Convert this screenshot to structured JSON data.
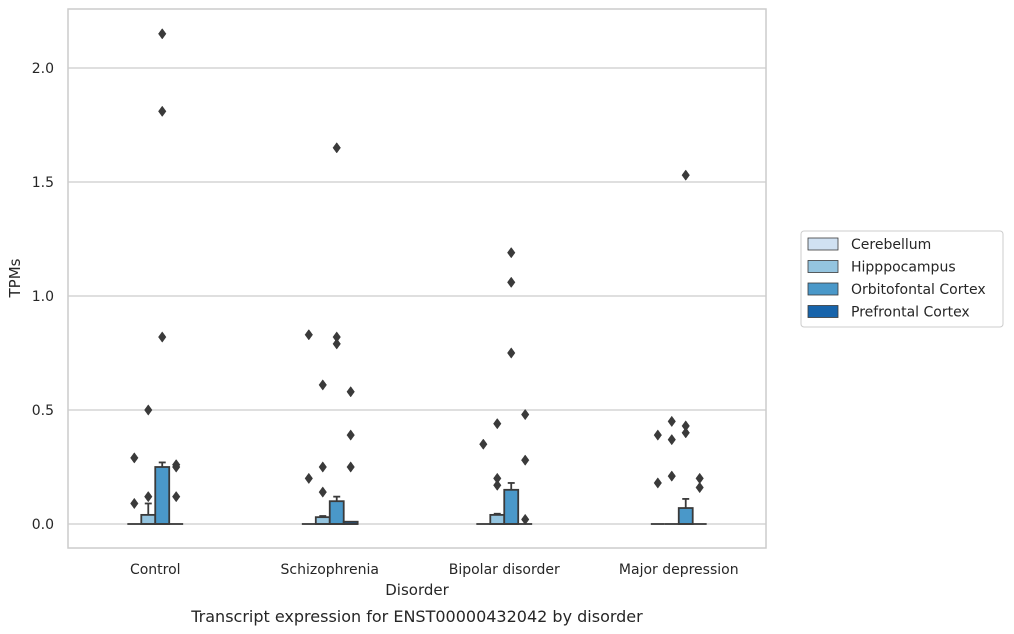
{
  "chart_data": {
    "type": "box",
    "caption": "Transcript expression for ENST00000432042 by disorder",
    "xlabel": "Disorder",
    "ylabel": "TPMs",
    "categories": [
      "Control",
      "Schizophrenia",
      "Bipolar disorder",
      "Major depression"
    ],
    "ylim": [
      -0.1,
      2.26
    ],
    "yticks": [
      0.0,
      0.5,
      1.0,
      1.5,
      2.0
    ],
    "ytick_labels": [
      "0.0",
      "0.5",
      "1.0",
      "1.5",
      "2.0"
    ],
    "grid": "horizontal",
    "legend_position": "right",
    "series": [
      {
        "name": "Cerebellum",
        "color": "#d0e1f2",
        "boxes": [
          {
            "q1": 0,
            "median": 0,
            "q3": 0,
            "whisker_low": 0,
            "whisker_high": 0,
            "outliers": [
              0.29,
              0.09
            ]
          },
          {
            "q1": 0,
            "median": 0,
            "q3": 0,
            "whisker_low": 0,
            "whisker_high": 0,
            "outliers": [
              0.83,
              0.2
            ]
          },
          {
            "q1": 0,
            "median": 0,
            "q3": 0,
            "whisker_low": 0,
            "whisker_high": 0,
            "outliers": [
              0.35
            ]
          },
          {
            "q1": 0,
            "median": 0,
            "q3": 0,
            "whisker_low": 0,
            "whisker_high": 0,
            "outliers": [
              0.39,
              0.18
            ]
          }
        ]
      },
      {
        "name": "Hipppocampus",
        "color": "#94c4df",
        "boxes": [
          {
            "q1": 0,
            "median": 0,
            "q3": 0.04,
            "whisker_low": 0,
            "whisker_high": 0.09,
            "outliers": [
              0.5,
              0.12
            ]
          },
          {
            "q1": 0,
            "median": 0,
            "q3": 0.03,
            "whisker_low": 0,
            "whisker_high": 0.035,
            "outliers": [
              0.61,
              0.25,
              0.14
            ]
          },
          {
            "q1": 0,
            "median": 0,
            "q3": 0.04,
            "whisker_low": 0,
            "whisker_high": 0.045,
            "outliers": [
              0.44,
              0.2,
              0.17
            ]
          },
          {
            "q1": 0,
            "median": 0,
            "q3": 0,
            "whisker_low": 0,
            "whisker_high": 0,
            "outliers": [
              0.45,
              0.37,
              0.21
            ]
          }
        ]
      },
      {
        "name": "Orbitofontal Cortex",
        "color": "#4a98c9",
        "boxes": [
          {
            "q1": 0,
            "median": 0,
            "q3": 0.25,
            "whisker_low": 0,
            "whisker_high": 0.27,
            "outliers": [
              2.15,
              1.81,
              0.82
            ]
          },
          {
            "q1": 0,
            "median": 0,
            "q3": 0.1,
            "whisker_low": 0,
            "whisker_high": 0.12,
            "outliers": [
              1.65,
              0.82,
              0.79
            ]
          },
          {
            "q1": 0,
            "median": 0,
            "q3": 0.15,
            "whisker_low": 0,
            "whisker_high": 0.18,
            "outliers": [
              1.19,
              1.06,
              0.75
            ]
          },
          {
            "q1": 0,
            "median": 0,
            "q3": 0.07,
            "whisker_low": 0,
            "whisker_high": 0.11,
            "outliers": [
              1.53,
              0.43,
              0.4
            ]
          }
        ]
      },
      {
        "name": "Prefrontal Cortex",
        "color": "#1764ab",
        "boxes": [
          {
            "q1": 0,
            "median": 0,
            "q3": 0,
            "whisker_low": 0,
            "whisker_high": 0,
            "outliers": [
              0.26,
              0.25,
              0.12
            ]
          },
          {
            "q1": 0,
            "median": 0,
            "q3": 0.01,
            "whisker_low": 0,
            "whisker_high": 0.01,
            "outliers": [
              0.58,
              0.39,
              0.25
            ]
          },
          {
            "q1": 0,
            "median": 0,
            "q3": 0,
            "whisker_low": 0,
            "whisker_high": 0,
            "outliers": [
              0.48,
              0.28,
              0.02
            ]
          },
          {
            "q1": 0,
            "median": 0,
            "q3": 0,
            "whisker_low": 0,
            "whisker_high": 0,
            "outliers": [
              0.2,
              0.16
            ]
          }
        ]
      }
    ]
  },
  "colors": {
    "edge": "#3a3a3a",
    "grid": "#cccccc",
    "frame": "#cccccc",
    "text": "#262626"
  }
}
